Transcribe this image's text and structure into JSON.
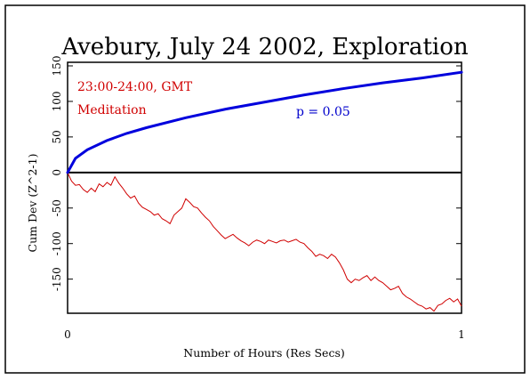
{
  "chart_data": {
    "type": "line",
    "title": "Avebury, July 24 2002, Exploration",
    "xlabel": "Number of Hours (Res Secs)",
    "ylabel": "Cum Dev (Z^2-1)",
    "xlim": [
      0,
      1
    ],
    "ylim": [
      -198,
      155
    ],
    "x_ticks": [
      0,
      1
    ],
    "y_ticks": [
      150,
      100,
      50,
      0,
      -50,
      -100,
      -150
    ],
    "zero_line": true,
    "grid": false,
    "annotations": {
      "time_range": "23:00-24:00, GMT",
      "event": "Meditation",
      "significance": "p = 0.05"
    },
    "colors": {
      "cumdev": "#d00000",
      "envelope": "#0000dd",
      "zero": "#000000",
      "annotation_red": "#d00000",
      "annotation_blue": "#0000cc"
    },
    "series": [
      {
        "role": "envelope",
        "formula": "1.96*sqrt(2*n)",
        "x": [
          0,
          0.02,
          0.05,
          0.1,
          0.15,
          0.2,
          0.3,
          0.4,
          0.5,
          0.6,
          0.7,
          0.8,
          0.9,
          1.0
        ],
        "values": [
          0,
          20,
          32,
          45,
          55,
          63,
          77,
          89,
          99,
          109,
          118,
          126,
          133,
          141
        ]
      },
      {
        "role": "cumulative deviation",
        "x": [
          0,
          0.01,
          0.02,
          0.03,
          0.04,
          0.05,
          0.06,
          0.07,
          0.08,
          0.09,
          0.1,
          0.11,
          0.12,
          0.13,
          0.14,
          0.15,
          0.16,
          0.17,
          0.18,
          0.19,
          0.2,
          0.21,
          0.22,
          0.23,
          0.24,
          0.25,
          0.26,
          0.27,
          0.28,
          0.29,
          0.3,
          0.31,
          0.32,
          0.33,
          0.34,
          0.35,
          0.36,
          0.37,
          0.38,
          0.39,
          0.4,
          0.41,
          0.42,
          0.43,
          0.44,
          0.45,
          0.46,
          0.47,
          0.48,
          0.49,
          0.5,
          0.51,
          0.52,
          0.53,
          0.54,
          0.55,
          0.56,
          0.57,
          0.58,
          0.59,
          0.6,
          0.61,
          0.62,
          0.63,
          0.64,
          0.65,
          0.66,
          0.67,
          0.68,
          0.69,
          0.7,
          0.71,
          0.72,
          0.73,
          0.74,
          0.75,
          0.76,
          0.77,
          0.78,
          0.79,
          0.8,
          0.81,
          0.82,
          0.83,
          0.84,
          0.85,
          0.86,
          0.87,
          0.88,
          0.89,
          0.9,
          0.91,
          0.92,
          0.93,
          0.94,
          0.95,
          0.96,
          0.97,
          0.98,
          0.99,
          1.0
        ],
        "values": [
          0,
          -12,
          -18,
          -17,
          -24,
          -28,
          -22,
          -27,
          -16,
          -20,
          -14,
          -18,
          -6,
          -15,
          -22,
          -30,
          -36,
          -33,
          -43,
          -49,
          -52,
          -55,
          -60,
          -58,
          -65,
          -68,
          -72,
          -60,
          -55,
          -50,
          -37,
          -42,
          -48,
          -50,
          -57,
          -63,
          -68,
          -76,
          -82,
          -88,
          -93,
          -90,
          -87,
          -92,
          -96,
          -99,
          -103,
          -98,
          -95,
          -97,
          -100,
          -95,
          -97,
          -99,
          -96,
          -95,
          -98,
          -96,
          -94,
          -98,
          -100,
          -106,
          -111,
          -118,
          -115,
          -117,
          -121,
          -115,
          -119,
          -127,
          -137,
          -150,
          -155,
          -150,
          -152,
          -148,
          -145,
          -152,
          -147,
          -152,
          -155,
          -160,
          -165,
          -163,
          -160,
          -170,
          -175,
          -178,
          -182,
          -186,
          -188,
          -192,
          -190,
          -195,
          -187,
          -185,
          -180,
          -177,
          -182,
          -178,
          -188
        ]
      }
    ]
  }
}
